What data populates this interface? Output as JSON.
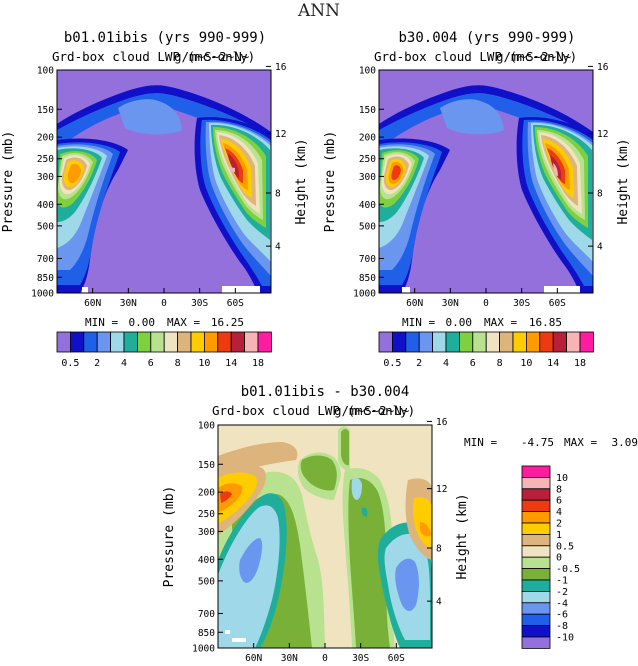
{
  "figure_title": "ANN",
  "colors": {
    "seq_levels": [
      "#9370db",
      "#1010c8",
      "#2060e8",
      "#6a96f0",
      "#9fd8e8",
      "#1fad9c",
      "#7ed040",
      "#b8e290",
      "#efe3c0",
      "#dcb47c",
      "#ffcc00",
      "#ff9a00",
      "#ee3a10",
      "#b8203a",
      "#f6b4b4",
      "#ff1ca0"
    ],
    "diff_levels": [
      "#9370db",
      "#1010c8",
      "#2060e8",
      "#6a96f0",
      "#9fd8e8",
      "#1fad9c",
      "#78b038",
      "#b8e290",
      "#efe3c0",
      "#dcb47c",
      "#ffcc00",
      "#ff9a00",
      "#ee3a10",
      "#b8203a",
      "#f6b4b4",
      "#ff1ca0"
    ]
  },
  "chart_data": [
    {
      "type": "heatmap",
      "title": "b01.01ibis (yrs 990-999)",
      "subtitle": "Grd-box cloud LWP (mc-only)",
      "subtitle_overlap": "g/m~S~2~N~",
      "ylabel": "Pressure (mb)",
      "ylabel_right": "Height (km)",
      "x_ticks": [
        "60N",
        "30N",
        "0",
        "30S",
        "60S"
      ],
      "y_ticks": [
        "100",
        "150",
        "200",
        "250",
        "300",
        "400",
        "500",
        "700",
        "850",
        "1000"
      ],
      "y_right_ticks": [
        "16",
        "12",
        "8",
        "4"
      ],
      "min_label": "MIN =",
      "min_value": "0.00",
      "max_label": "MAX =",
      "max_value": "16.25",
      "levels": [
        "0.5",
        "2",
        "4",
        "6",
        "8",
        "10",
        "14",
        "18"
      ]
    },
    {
      "type": "heatmap",
      "title": "b30.004 (yrs 990-999)",
      "subtitle": "Grd-box cloud LWP (mc-only)",
      "subtitle_overlap": "g/m~S~2~N~",
      "ylabel": "Pressure (mb)",
      "ylabel_right": "Height (km)",
      "x_ticks": [
        "60N",
        "30N",
        "0",
        "30S",
        "60S"
      ],
      "y_ticks": [
        "100",
        "150",
        "200",
        "250",
        "300",
        "400",
        "500",
        "700",
        "850",
        "1000"
      ],
      "y_right_ticks": [
        "16",
        "12",
        "8",
        "4"
      ],
      "min_label": "MIN =",
      "min_value": "0.00",
      "max_label": "MAX =",
      "max_value": "16.85",
      "levels": [
        "0.5",
        "2",
        "4",
        "6",
        "8",
        "10",
        "14",
        "18"
      ]
    },
    {
      "type": "heatmap",
      "title": "b01.01ibis - b30.004",
      "subtitle": "Grd-box cloud LWP (mc-only)",
      "subtitle_overlap": "g/m~S~2~N~",
      "ylabel": "Pressure (mb)",
      "ylabel_right": "Height (km)",
      "x_ticks": [
        "60N",
        "30N",
        "0",
        "30S",
        "60S"
      ],
      "y_ticks": [
        "100",
        "150",
        "200",
        "250",
        "300",
        "400",
        "500",
        "700",
        "850",
        "1000"
      ],
      "y_right_ticks": [
        "16",
        "12",
        "8",
        "4"
      ],
      "min_label": "MIN =",
      "min_value": "-4.75",
      "max_label": "MAX =",
      "max_value": "3.09",
      "levels": [
        "10",
        "8",
        "6",
        "4",
        "2",
        "1",
        "0.5",
        "0",
        "-0.5",
        "-1",
        "-2",
        "-4",
        "-6",
        "-8",
        "-10"
      ]
    }
  ]
}
